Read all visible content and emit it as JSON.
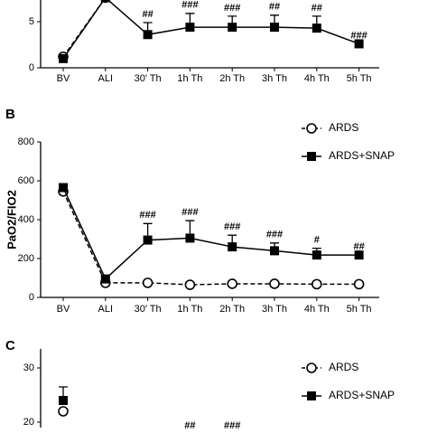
{
  "chart_data": [
    {
      "type": "line",
      "categories": [
        "BV",
        "ALI",
        "30' Th",
        "1h Th",
        "2h Th",
        "3h Th",
        "4h Th",
        "5h Th"
      ],
      "ylim": [
        0,
        7.35
      ],
      "yticks": [
        0,
        5
      ],
      "series": [
        {
          "color": "#000000",
          "marker": "circle-open",
          "dashed": true,
          "values": [
            1.2,
            7.6,
            null,
            null,
            null,
            null,
            null,
            null
          ]
        },
        {
          "color": "#000000",
          "marker": "square",
          "dashed": false,
          "values": [
            1.0,
            7.6,
            3.6,
            4.4,
            4.4,
            4.4,
            4.3,
            2.6
          ],
          "errors": [
            null,
            null,
            1.3,
            1.5,
            1.2,
            1.3,
            1.3,
            null
          ]
        }
      ],
      "annotations": [
        null,
        null,
        "##",
        "###",
        "###",
        "##",
        "##",
        "###"
      ]
    },
    {
      "type": "line",
      "panel_label": "B",
      "ylabel": "PaO2/FIO2",
      "categories": [
        "BV",
        "ALI",
        "30' Th",
        "1h Th",
        "2h Th",
        "3h Th",
        "4h Th",
        "5h Th"
      ],
      "ylim": [
        0,
        800
      ],
      "yticks": [
        0,
        200,
        400,
        600,
        800
      ],
      "series": [
        {
          "name": "ARDS",
          "color": "#000000",
          "marker": "circle-open",
          "dashed": true,
          "values": [
            545,
            75,
            75,
            65,
            70,
            70,
            68,
            68
          ]
        },
        {
          "name": "ARDS+SNAP",
          "color": "#000000",
          "marker": "square",
          "dashed": false,
          "values": [
            565,
            95,
            295,
            305,
            260,
            240,
            218,
            218
          ],
          "errors": [
            null,
            null,
            85,
            90,
            60,
            40,
            35,
            null
          ]
        }
      ],
      "annotations": [
        null,
        null,
        "###",
        "###",
        "###",
        "###",
        "#",
        "##"
      ]
    },
    {
      "type": "line",
      "panel_label": "C",
      "categories": [
        null,
        null,
        null,
        null,
        null,
        null,
        null,
        null
      ],
      "ylim": [
        19,
        33.5
      ],
      "yticks": [
        20,
        30
      ],
      "series": [
        {
          "name": "ARDS",
          "color": "#000000",
          "marker": "circle-open",
          "dashed": true,
          "values": [
            22,
            null,
            null,
            null,
            null,
            null,
            null,
            null
          ]
        },
        {
          "name": "ARDS+SNAP",
          "color": "#000000",
          "marker": "square",
          "dashed": false,
          "values": [
            24,
            null,
            null,
            null,
            null,
            null,
            null,
            null
          ],
          "errors": [
            2.5,
            null,
            null,
            null,
            null,
            null,
            null,
            null
          ]
        }
      ],
      "annotations": [
        null,
        null,
        null,
        "##",
        "###",
        null,
        null,
        null
      ]
    }
  ]
}
